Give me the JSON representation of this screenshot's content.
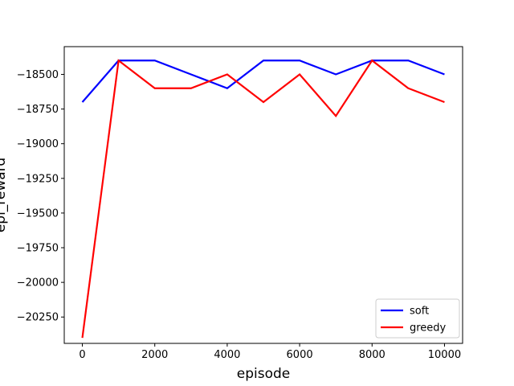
{
  "chart_data": {
    "type": "line",
    "title": "",
    "xlabel": "episode",
    "ylabel": "epi_reward",
    "xlim": [
      -500,
      10500
    ],
    "ylim": [
      -20440,
      -18300
    ],
    "x_ticks": [
      0,
      2000,
      4000,
      6000,
      8000,
      10000
    ],
    "y_ticks": [
      -20250,
      -20000,
      -19750,
      -19500,
      -19250,
      -19000,
      -18750,
      -18500
    ],
    "x": [
      0,
      1000,
      2000,
      3000,
      4000,
      5000,
      6000,
      7000,
      8000,
      9000,
      10000
    ],
    "series": [
      {
        "name": "soft",
        "color": "#0000ff",
        "values": [
          -18700,
          -18400,
          -18400,
          -18500,
          -18600,
          -18400,
          -18400,
          -18500,
          -18400,
          -18400,
          -18500
        ]
      },
      {
        "name": "greedy",
        "color": "#ff0000",
        "values": [
          -20400,
          -18400,
          -18600,
          -18600,
          -18500,
          -18700,
          -18500,
          -18800,
          -18400,
          -18600,
          -18700
        ]
      }
    ],
    "grid": false,
    "legend_position": "lower-right"
  }
}
